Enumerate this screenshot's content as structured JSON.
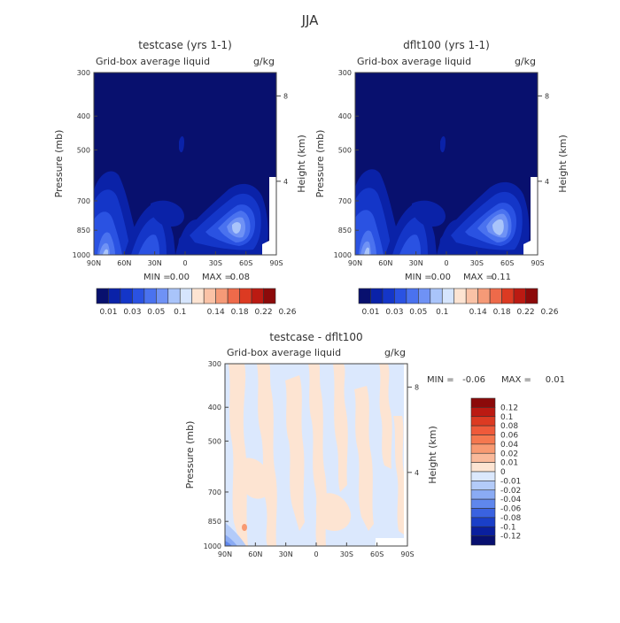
{
  "figure": {
    "title": "JJA"
  },
  "chart_data": [
    {
      "type": "heatmap",
      "title": "testcase (yrs 1-1)",
      "variable_label": "Grid-box average liquid",
      "units": "g/kg",
      "x_tick_labels": [
        "90N",
        "60N",
        "30N",
        "0",
        "30S",
        "60S",
        "90S"
      ],
      "x_range": [
        90,
        -90
      ],
      "y_tick_labels": [
        "300",
        "400",
        "500",
        "700",
        "850",
        "1000"
      ],
      "y_tick_values": [
        300,
        400,
        500,
        700,
        850,
        1000
      ],
      "y_range": [
        300,
        1000
      ],
      "ylabel": "Pressure (mb)",
      "y2label": "Height (km)",
      "y2_tick_labels": [
        "8",
        "4"
      ],
      "stats": {
        "min_label": "MIN =",
        "min": "0.00",
        "max_label": "MAX =",
        "max": "0.08"
      },
      "colorbar": {
        "orientation": "horizontal",
        "labels": [
          "0.01",
          "0.03",
          "0.05",
          "0.1",
          "0.14",
          "0.18",
          "0.22",
          "0.26"
        ],
        "colors": [
          "#08106e",
          "#0a22a8",
          "#1436c8",
          "#2a52e2",
          "#4a72ef",
          "#6f92f5",
          "#a9c4fa",
          "#d6e5fd",
          "#fde4d2",
          "#fac2a6",
          "#f59a77",
          "#ee6a4a",
          "#dc3a22",
          "#bb1a12",
          "#8c0a0a"
        ]
      }
    },
    {
      "type": "heatmap",
      "title": "dflt100 (yrs 1-1)",
      "variable_label": "Grid-box average liquid",
      "units": "g/kg",
      "x_tick_labels": [
        "90N",
        "60N",
        "30N",
        "0",
        "30S",
        "60S",
        "90S"
      ],
      "x_range": [
        90,
        -90
      ],
      "y_tick_labels": [
        "300",
        "400",
        "500",
        "700",
        "850",
        "1000"
      ],
      "y_tick_values": [
        300,
        400,
        500,
        700,
        850,
        1000
      ],
      "y_range": [
        300,
        1000
      ],
      "ylabel": "Pressure (mb)",
      "y2label": "Height (km)",
      "y2_tick_labels": [
        "8",
        "4"
      ],
      "stats": {
        "min_label": "MIN =",
        "min": "0.00",
        "max_label": "MAX =",
        "max": "0.11"
      },
      "colorbar": {
        "orientation": "horizontal",
        "labels": [
          "0.01",
          "0.03",
          "0.05",
          "0.1",
          "0.14",
          "0.18",
          "0.22",
          "0.26"
        ],
        "colors": [
          "#08106e",
          "#0a22a8",
          "#1436c8",
          "#2a52e2",
          "#4a72ef",
          "#6f92f5",
          "#a9c4fa",
          "#d6e5fd",
          "#fde4d2",
          "#fac2a6",
          "#f59a77",
          "#ee6a4a",
          "#dc3a22",
          "#bb1a12",
          "#8c0a0a"
        ]
      }
    },
    {
      "type": "heatmap",
      "title": "testcase - dflt100",
      "variable_label": "Grid-box average liquid",
      "units": "g/kg",
      "x_tick_labels": [
        "90N",
        "60N",
        "30N",
        "0",
        "30S",
        "60S",
        "90S"
      ],
      "x_range": [
        90,
        -90
      ],
      "y_tick_labels": [
        "300",
        "400",
        "500",
        "700",
        "850",
        "1000"
      ],
      "y_tick_values": [
        300,
        400,
        500,
        700,
        850,
        1000
      ],
      "y_range": [
        300,
        1000
      ],
      "ylabel": "Pressure (mb)",
      "y2label": "Height (km)",
      "y2_tick_labels": [
        "8",
        "4"
      ],
      "stats": {
        "min_label": "MIN =",
        "min": "-0.06",
        "max_label": "MAX =",
        "max": "0.01"
      },
      "colorbar": {
        "orientation": "vertical",
        "labels": [
          "0.12",
          "0.1",
          "0.08",
          "0.06",
          "0.04",
          "0.02",
          "0.01",
          "0",
          "-0.01",
          "-0.02",
          "-0.04",
          "-0.06",
          "-0.08",
          "-0.1",
          "-0.12"
        ],
        "colors": [
          "#8c0a0a",
          "#bb1a12",
          "#dc3a22",
          "#ef5a3a",
          "#f5784f",
          "#f89a72",
          "#fab99a",
          "#fde4d2",
          "#dbe8fd",
          "#b3cbf9",
          "#8aabf4",
          "#5f87ed",
          "#3a62e0",
          "#1a3fc8",
          "#0a1f9e",
          "#081070"
        ]
      }
    }
  ]
}
